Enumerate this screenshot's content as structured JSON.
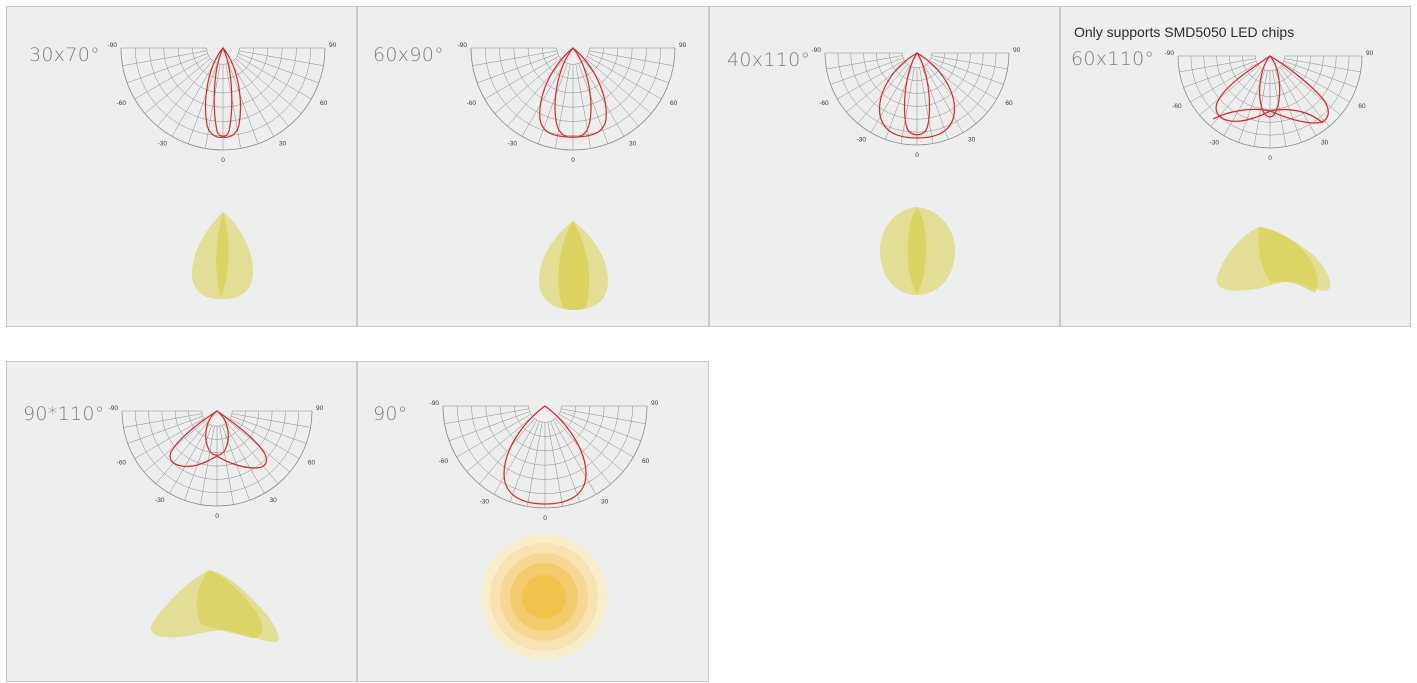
{
  "colors": {
    "panel": "#edeeee",
    "border": "#c9cbcb",
    "grid": "#8a8a8a",
    "curve": "#e0232a",
    "beam_light": "#e1dc8c",
    "beam_dark": "#d8d25a",
    "spot_outer": "#f8ecc4",
    "spot_inner": "#f2c23a"
  },
  "cards": [
    {
      "label": "30x70°",
      "note": "",
      "ticks": [
        "-90",
        "-60",
        "-30",
        "0",
        "30",
        "60",
        "90"
      ],
      "curve_icon": "polar-curve-icon",
      "beam_icon": "beam-shape-icon"
    },
    {
      "label": "60x90°",
      "note": "",
      "ticks": [
        "-90",
        "-60",
        "-30",
        "0",
        "30",
        "60",
        "90"
      ],
      "curve_icon": "polar-curve-icon",
      "beam_icon": "beam-shape-icon"
    },
    {
      "label": "40x110°",
      "note": "",
      "ticks": [
        "-90",
        "-60",
        "-30",
        "0",
        "30",
        "60",
        "90"
      ],
      "curve_icon": "polar-curve-icon",
      "beam_icon": "beam-shape-icon"
    },
    {
      "label": "60x110°",
      "note": "Only supports SMD5050 LED chips",
      "ticks": [
        "-90",
        "-60",
        "-30",
        "0",
        "30",
        "60",
        "90"
      ],
      "curve_icon": "polar-curve-icon",
      "beam_icon": "beam-shape-icon"
    },
    {
      "label": "90*110°",
      "note": "",
      "ticks": [
        "-90",
        "-60",
        "-30",
        "0",
        "30",
        "60",
        "90"
      ],
      "curve_icon": "polar-curve-icon",
      "beam_icon": "beam-shape-icon"
    },
    {
      "label": "90°",
      "note": "",
      "ticks": [
        "-90",
        "-60",
        "-30",
        "0",
        "30",
        "60",
        "90"
      ],
      "curve_icon": "polar-curve-icon",
      "beam_icon": "light-spot-icon"
    }
  ]
}
